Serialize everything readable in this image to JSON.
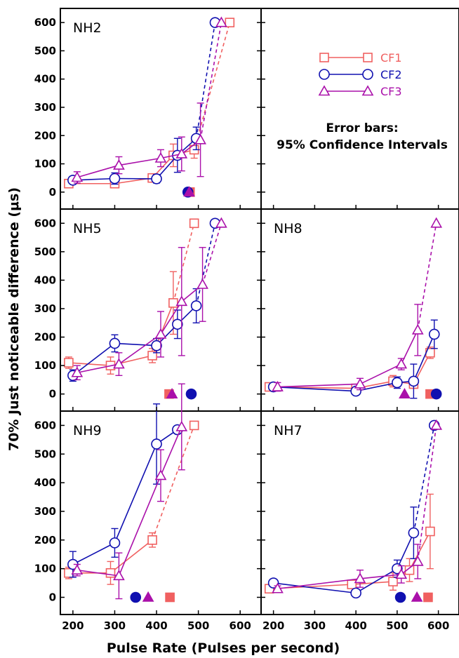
{
  "chart_data": {
    "type": "line",
    "xlabel": "Pulse Rate (Pulses per second)",
    "ylabel": "70% Just noticeable difference (μs)",
    "xlim": [
      170,
      650
    ],
    "ylim": [
      -60,
      650
    ],
    "x_ticks": [
      200,
      300,
      400,
      500,
      600
    ],
    "y_ticks": [
      0,
      100,
      200,
      300,
      400,
      500,
      600
    ],
    "layout": "3 rows x 2 columns, shared axes",
    "legend": {
      "placement": "top-right empty panel",
      "entries": [
        {
          "label": "CF1",
          "marker": "square",
          "color": "#f06060"
        },
        {
          "label": "CF2",
          "marker": "circle",
          "color": "#1010b0"
        },
        {
          "label": "CF3",
          "marker": "triangle",
          "color": "#aa10aa"
        }
      ],
      "note_line1": "Error bars:",
      "note_line2": "95% Confidence Intervals"
    },
    "panels": [
      {
        "label": "NH2",
        "row": 0,
        "col": 0,
        "series": [
          {
            "name": "CF1",
            "x": [
              190,
              300,
              390,
              440,
              490,
              575
            ],
            "y": [
              30,
              30,
              50,
              130,
              150,
              600
            ],
            "err": [
              10,
              10,
              10,
              40,
              30,
              0
            ],
            "dashed_from": 4,
            "threshold": 480
          },
          {
            "name": "CF2",
            "x": [
              200,
              300,
              400,
              450,
              495,
              540
            ],
            "y": [
              42,
              48,
              47,
              130,
              190,
              600
            ],
            "err": [
              10,
              20,
              15,
              60,
              40,
              0
            ],
            "dashed_from": 4,
            "threshold": 475
          },
          {
            "name": "CF3",
            "x": [
              210,
              310,
              410,
              460,
              505,
              555
            ],
            "y": [
              52,
              95,
              120,
              135,
              185,
              600
            ],
            "err": [
              20,
              30,
              30,
              60,
              130,
              0
            ],
            "dashed_from": 4,
            "threshold": 478
          }
        ]
      },
      {
        "label": "NH5",
        "row": 1,
        "col": 0,
        "series": [
          {
            "name": "CF1",
            "x": [
              190,
              290,
              390,
              440,
              490
            ],
            "y": [
              110,
              100,
              135,
              320,
              600
            ],
            "err": [
              20,
              30,
              25,
              110,
              0
            ],
            "dashed_from": 3,
            "threshold": 430
          },
          {
            "name": "CF2",
            "x": [
              200,
              300,
              400,
              450,
              495,
              540
            ],
            "y": [
              65,
              178,
              170,
              245,
              310,
              600
            ],
            "err": [
              20,
              30,
              25,
              50,
              60,
              0
            ],
            "dashed_from": 4,
            "threshold": 483
          },
          {
            "name": "CF3",
            "x": [
              210,
              310,
              410,
              460,
              510,
              555
            ],
            "y": [
              75,
              105,
              210,
              325,
              385,
              600
            ],
            "err": [
              25,
              40,
              80,
              190,
              130,
              0
            ],
            "dashed_from": 4,
            "threshold": 437
          }
        ]
      },
      {
        "label": "NH8",
        "row": 1,
        "col": 1,
        "series": [
          {
            "name": "CF1",
            "x": [
              190,
              400,
              490,
              540,
              580
            ],
            "y": [
              25,
              20,
              45,
              35,
              145
            ],
            "err": [
              10,
              10,
              20,
              15,
              20
            ],
            "dashed_from": 99,
            "threshold": 580
          },
          {
            "name": "CF2",
            "x": [
              200,
              400,
              500,
              540,
              590
            ],
            "y": [
              25,
              10,
              40,
              45,
              210
            ],
            "err": [
              10,
              10,
              20,
              60,
              50
            ],
            "dashed_from": 99,
            "threshold": 595
          },
          {
            "name": "CF3",
            "x": [
              210,
              410,
              510,
              550,
              595
            ],
            "y": [
              25,
              35,
              105,
              225,
              600
            ],
            "err": [
              15,
              20,
              20,
              90,
              0
            ],
            "dashed_from": 3,
            "threshold": 518
          }
        ]
      },
      {
        "label": "NH9",
        "row": 2,
        "col": 0,
        "series": [
          {
            "name": "CF1",
            "x": [
              190,
              290,
              390,
              490
            ],
            "y": [
              85,
              85,
              200,
              600
            ],
            "err": [
              20,
              40,
              25,
              0
            ],
            "dashed_from": 2,
            "threshold": 432
          },
          {
            "name": "CF2",
            "x": [
              200,
              300,
              400,
              450
            ],
            "y": [
              115,
              190,
              535,
              585
            ],
            "err": [
              45,
              50,
              140,
              0
            ],
            "dashed_from": 99,
            "threshold": 350
          },
          {
            "name": "CF3",
            "x": [
              210,
              310,
              410,
              460
            ],
            "y": [
              95,
              75,
              425,
              595
            ],
            "err": [
              20,
              80,
              90,
              150
            ],
            "dashed_from": 99,
            "threshold": 380
          }
        ]
      },
      {
        "label": "NH7",
        "row": 2,
        "col": 1,
        "series": [
          {
            "name": "CF1",
            "x": [
              190,
              390,
              490,
              530,
              580
            ],
            "y": [
              30,
              45,
              55,
              95,
              230
            ],
            "err": [
              10,
              10,
              30,
              40,
              130
            ],
            "dashed_from": 99,
            "threshold": 575
          },
          {
            "name": "CF2",
            "x": [
              200,
              400,
              500,
              540,
              590
            ],
            "y": [
              50,
              15,
              100,
              225,
              600
            ],
            "err": [
              10,
              10,
              30,
              90,
              0
            ],
            "dashed_from": 3,
            "threshold": 508
          },
          {
            "name": "CF3",
            "x": [
              210,
              410,
              510,
              550,
              595
            ],
            "y": [
              30,
              65,
              80,
              125,
              600
            ],
            "err": [
              10,
              30,
              30,
              60,
              0
            ],
            "dashed_from": 3,
            "threshold": 548
          }
        ]
      }
    ]
  }
}
